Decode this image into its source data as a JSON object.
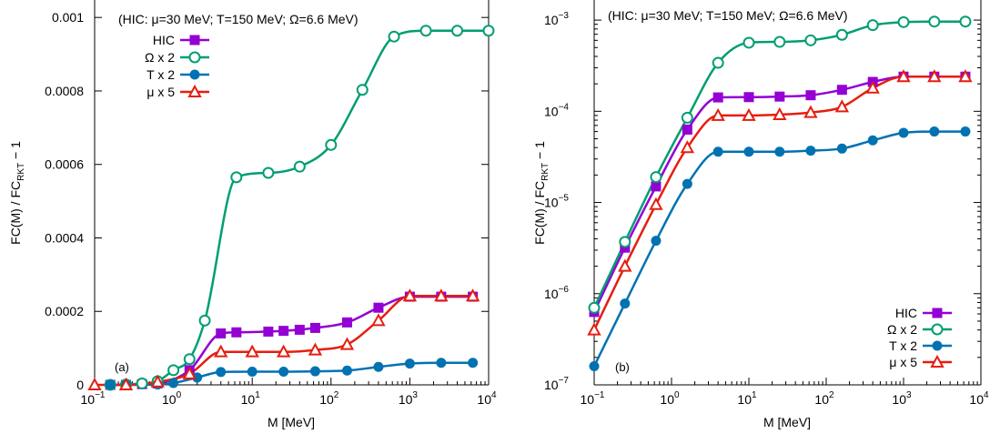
{
  "chart_data": [
    {
      "type": "line",
      "panel_label": "(a)",
      "annotation": "(HIC: μ=30 MeV; T=150 MeV; Ω=6.6 MeV)",
      "xlabel": "M [MeV]",
      "ylabel_main": "FC(M) / FC",
      "ylabel_sub": "RKT",
      "ylabel_tail": " − 1",
      "x_scale": "log",
      "y_scale": "linear",
      "xlim": [
        0.1,
        10000
      ],
      "ylim": [
        0,
        0.00105
      ],
      "x_ticks": [
        {
          "value": 0.1,
          "base": "10",
          "exp": "−1"
        },
        {
          "value": 1,
          "base": "10",
          "exp": "0"
        },
        {
          "value": 10,
          "base": "10",
          "exp": "1"
        },
        {
          "value": 100,
          "base": "10",
          "exp": "2"
        },
        {
          "value": 1000,
          "base": "10",
          "exp": "3"
        },
        {
          "value": 10000,
          "base": "10",
          "exp": "4"
        }
      ],
      "y_ticks": [
        {
          "value": 0,
          "label": "0"
        },
        {
          "value": 0.0002,
          "label": "0.0002"
        },
        {
          "value": 0.0004,
          "label": "0.0004"
        },
        {
          "value": 0.0006,
          "label": "0.0006"
        },
        {
          "value": 0.0008,
          "label": "0.0008"
        },
        {
          "value": 0.001,
          "label": "0.001"
        }
      ],
      "legend_position": "top-left",
      "series": [
        {
          "name": "HIC",
          "color": "#9400d3",
          "marker": "square",
          "x": [
            0.158,
            0.25,
            0.4,
            0.63,
            1.6,
            4,
            6.3,
            16,
            25,
            40,
            63,
            160,
            400,
            1000,
            2500,
            6300
          ],
          "y": [
            0,
            0,
            2e-06,
            4e-06,
            4e-05,
            0.00014,
            0.000143,
            0.000145,
            0.000147,
            0.00015,
            0.000155,
            0.00017,
            0.00021,
            0.00024,
            0.00024,
            0.00024
          ]
        },
        {
          "name": "Ω x 2",
          "color": "#009e73",
          "marker": "circle-open",
          "x": [
            0.158,
            0.25,
            0.4,
            0.63,
            1.0,
            1.6,
            2.5,
            6.3,
            16,
            40,
            100,
            250,
            630,
            1600,
            4000,
            10000
          ],
          "y": [
            0,
            1e-06,
            4e-06,
            1e-05,
            4e-05,
            7e-05,
            0.000175,
            0.000565,
            0.000577,
            0.000594,
            0.000653,
            0.000803,
            0.000948,
            0.000964,
            0.000964,
            0.000964
          ]
        },
        {
          "name": "T x 2",
          "color": "#0072b2",
          "marker": "circle-filled",
          "x": [
            0.158,
            0.25,
            0.63,
            1.0,
            2.0,
            4,
            10,
            25,
            63,
            160,
            400,
            1000,
            2500,
            6300
          ],
          "y": [
            0,
            0,
            1e-06,
            5e-06,
            2e-05,
            3.5e-05,
            3.6e-05,
            3.6e-05,
            3.7e-05,
            3.9e-05,
            4.9e-05,
            5.8e-05,
            6e-05,
            6e-05
          ]
        },
        {
          "name": "μ x 5",
          "color": "#e51e10",
          "marker": "triangle-open",
          "x": [
            0.1,
            0.25,
            0.63,
            1.6,
            4,
            10,
            25,
            63,
            160,
            400,
            1000,
            2500,
            6300
          ],
          "y": [
            0,
            0,
            8e-06,
            3e-05,
            9e-05,
            9e-05,
            9e-05,
            9.5e-05,
            0.00011,
            0.000175,
            0.000242,
            0.000242,
            0.000242
          ]
        }
      ]
    },
    {
      "type": "line",
      "panel_label": "(b)",
      "annotation": "(HIC: μ=30 MeV; T=150 MeV; Ω=6.6 MeV)",
      "xlabel": "M [MeV]",
      "ylabel_main": "FC(M) / FC",
      "ylabel_sub": "RKT",
      "ylabel_tail": " − 1",
      "x_scale": "log",
      "y_scale": "log",
      "xlim": [
        0.1,
        10000
      ],
      "ylim": [
        1e-07,
        0.0017
      ],
      "x_ticks": [
        {
          "value": 0.1,
          "base": "10",
          "exp": "−1"
        },
        {
          "value": 1,
          "base": "10",
          "exp": "0"
        },
        {
          "value": 10,
          "base": "10",
          "exp": "1"
        },
        {
          "value": 100,
          "base": "10",
          "exp": "2"
        },
        {
          "value": 1000,
          "base": "10",
          "exp": "3"
        },
        {
          "value": 10000,
          "base": "10",
          "exp": "4"
        }
      ],
      "y_ticks": [
        {
          "value": 1e-07,
          "base": "10",
          "exp": "−7"
        },
        {
          "value": 1e-06,
          "base": "10",
          "exp": "−6"
        },
        {
          "value": 1e-05,
          "base": "10",
          "exp": "−5"
        },
        {
          "value": 0.0001,
          "base": "10",
          "exp": "−4"
        },
        {
          "value": 0.001,
          "base": "10",
          "exp": "−3"
        }
      ],
      "legend_position": "bottom-right",
      "series": [
        {
          "name": "HIC",
          "color": "#9400d3",
          "marker": "square",
          "x": [
            0.1,
            0.25,
            0.63,
            1.6,
            4,
            10,
            25,
            63,
            160,
            400,
            1000,
            2500,
            6300
          ],
          "y": [
            6.3e-07,
            3.2e-06,
            1.5e-05,
            6.3e-05,
            0.000142,
            0.000143,
            0.000145,
            0.00015,
            0.000172,
            0.00021,
            0.00024,
            0.00024,
            0.00024
          ]
        },
        {
          "name": "Ω x 2",
          "color": "#009e73",
          "marker": "circle-open",
          "x": [
            0.1,
            0.25,
            0.63,
            1.6,
            4,
            10,
            25,
            63,
            160,
            400,
            1000,
            2500,
            6300
          ],
          "y": [
            7e-07,
            3.7e-06,
            1.9e-05,
            8.5e-05,
            0.00034,
            0.000565,
            0.000577,
            0.0006,
            0.00069,
            0.00088,
            0.00095,
            0.000964,
            0.000964
          ]
        },
        {
          "name": "T x 2",
          "color": "#0072b2",
          "marker": "circle-filled",
          "x": [
            0.1,
            0.25,
            0.63,
            1.6,
            4,
            10,
            25,
            63,
            160,
            400,
            1000,
            2500,
            6300
          ],
          "y": [
            1.6e-07,
            7.8e-07,
            3.8e-06,
            1.6e-05,
            3.6e-05,
            3.6e-05,
            3.6e-05,
            3.7e-05,
            3.9e-05,
            4.8e-05,
            5.8e-05,
            6e-05,
            6e-05
          ]
        },
        {
          "name": "μ x 5",
          "color": "#e51e10",
          "marker": "triangle-open",
          "x": [
            0.1,
            0.25,
            0.63,
            1.6,
            4,
            10,
            25,
            63,
            160,
            400,
            1000,
            2500,
            6300
          ],
          "y": [
            4e-07,
            2e-06,
            9.5e-06,
            4e-05,
            9e-05,
            9e-05,
            9.2e-05,
            9.7e-05,
            0.000112,
            0.00018,
            0.00024,
            0.00024,
            0.00024
          ]
        }
      ]
    }
  ]
}
